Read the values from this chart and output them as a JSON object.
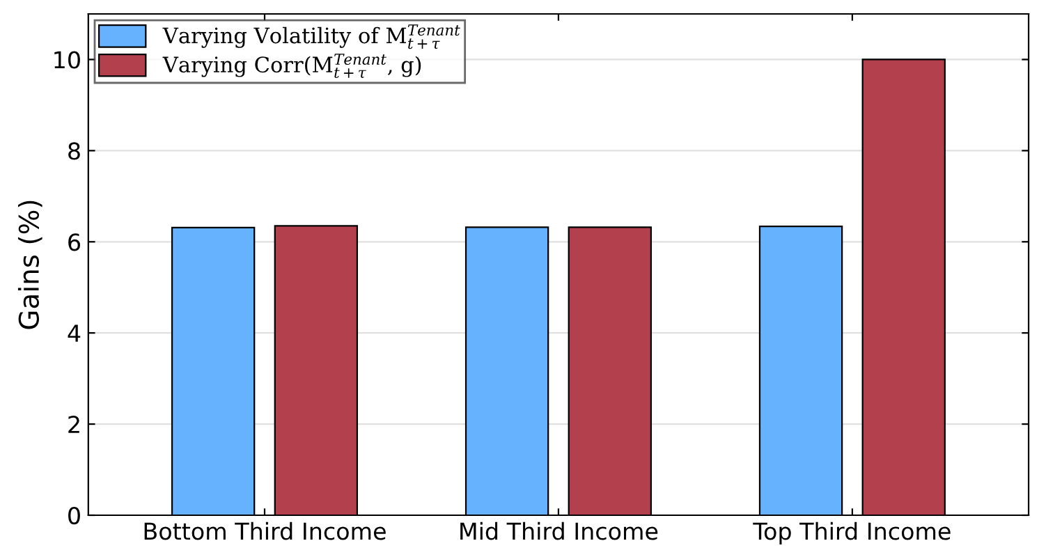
{
  "chart_data": {
    "type": "bar",
    "ylabel": "Gains (%)",
    "categories": [
      "Bottom Third Income",
      "Mid Third Income",
      "Top Third Income"
    ],
    "series": [
      {
        "name": "Varying Volatility of M$^{Tenant}$$_{t+τ}$",
        "color": "#66b2ff",
        "values": [
          6.31,
          6.32,
          6.34
        ]
      },
      {
        "name": "Varying Corr(M$^{Tenant}$$_{t+τ}$, g)",
        "color": "#b3404d",
        "values": [
          6.35,
          6.32,
          10.0
        ]
      }
    ],
    "ylim": [
      0,
      11
    ],
    "yticks": [
      0,
      2,
      4,
      6,
      8,
      10
    ],
    "grid": "y",
    "legend": "top left"
  }
}
